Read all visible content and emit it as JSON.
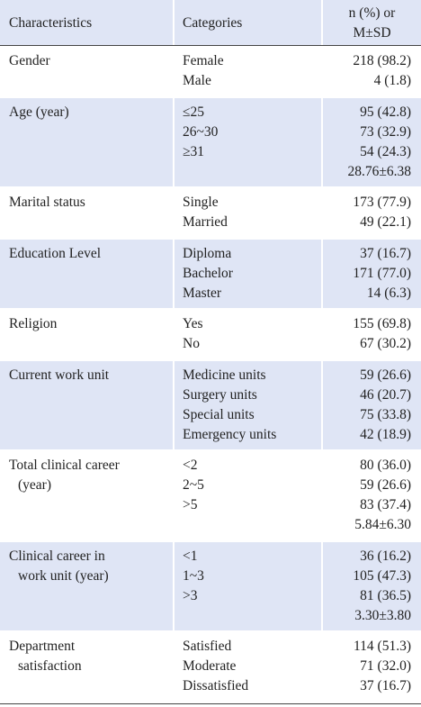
{
  "header": {
    "characteristics": "Characteristics",
    "categories": "Categories",
    "values": [
      "n (%) or",
      "M±SD"
    ]
  },
  "rows": [
    {
      "characteristic": [
        "Gender"
      ],
      "categories": [
        "Female",
        "Male"
      ],
      "values": [
        "218 (98.2)",
        "4 (1.8)"
      ]
    },
    {
      "characteristic": [
        "Age (year)"
      ],
      "categories": [
        "≤25",
        "26~30",
        "≥31"
      ],
      "values": [
        "95 (42.8)",
        "73 (32.9)",
        "54 (24.3)",
        "28.76±6.38"
      ]
    },
    {
      "characteristic": [
        "Marital status"
      ],
      "categories": [
        "Single",
        "Married"
      ],
      "values": [
        "173 (77.9)",
        "49 (22.1)"
      ]
    },
    {
      "characteristic": [
        "Education Level"
      ],
      "categories": [
        "Diploma",
        "Bachelor",
        "Master"
      ],
      "values": [
        "37 (16.7)",
        "171 (77.0)",
        "14 (6.3)"
      ]
    },
    {
      "characteristic": [
        "Religion"
      ],
      "categories": [
        "Yes",
        "No"
      ],
      "values": [
        "155 (69.8)",
        "67 (30.2)"
      ]
    },
    {
      "characteristic": [
        "Current work unit"
      ],
      "categories": [
        "Medicine units",
        "Surgery units",
        "Special units",
        "Emergency units"
      ],
      "values": [
        "59 (26.6)",
        "46 (20.7)",
        "75 (33.8)",
        "42 (18.9)"
      ]
    },
    {
      "characteristic": [
        "Total clinical career",
        "(year)"
      ],
      "categories": [
        "<2",
        "2~5",
        ">5"
      ],
      "values": [
        "80 (36.0)",
        "59 (26.6)",
        "83 (37.4)",
        "5.84±6.30"
      ]
    },
    {
      "characteristic": [
        "Clinical career in",
        "work unit (year)"
      ],
      "categories": [
        "<1",
        "1~3",
        ">3"
      ],
      "values": [
        "36 (16.2)",
        "105 (47.3)",
        "81 (36.5)",
        "3.30±3.80"
      ]
    },
    {
      "characteristic": [
        "Department",
        "satisfaction"
      ],
      "categories": [
        "Satisfied",
        "Moderate",
        "Dissatisfied"
      ],
      "values": [
        "114 (51.3)",
        "71 (32.0)",
        "37 (16.7)"
      ]
    }
  ]
}
